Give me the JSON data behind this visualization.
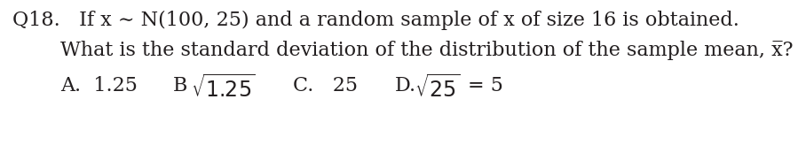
{
  "line1_q": "Q18.",
  "line1_text": "If x ∼ N(100, 25) and a random sample of x of size 16 is obtained.",
  "line2_indent": "What is the standard deviation of the distribution of the sample mean, x̅?",
  "ans_A": "A.  1.25",
  "ans_B_pre": "B",
  "ans_B_sqrt": "1.25",
  "ans_C": "C.   25",
  "ans_D_pre": "D.",
  "ans_D_sqrt": "25",
  "ans_D_post": " = 5",
  "bg_color": "#ffffff",
  "text_color": "#231f20",
  "fontsize": 16
}
